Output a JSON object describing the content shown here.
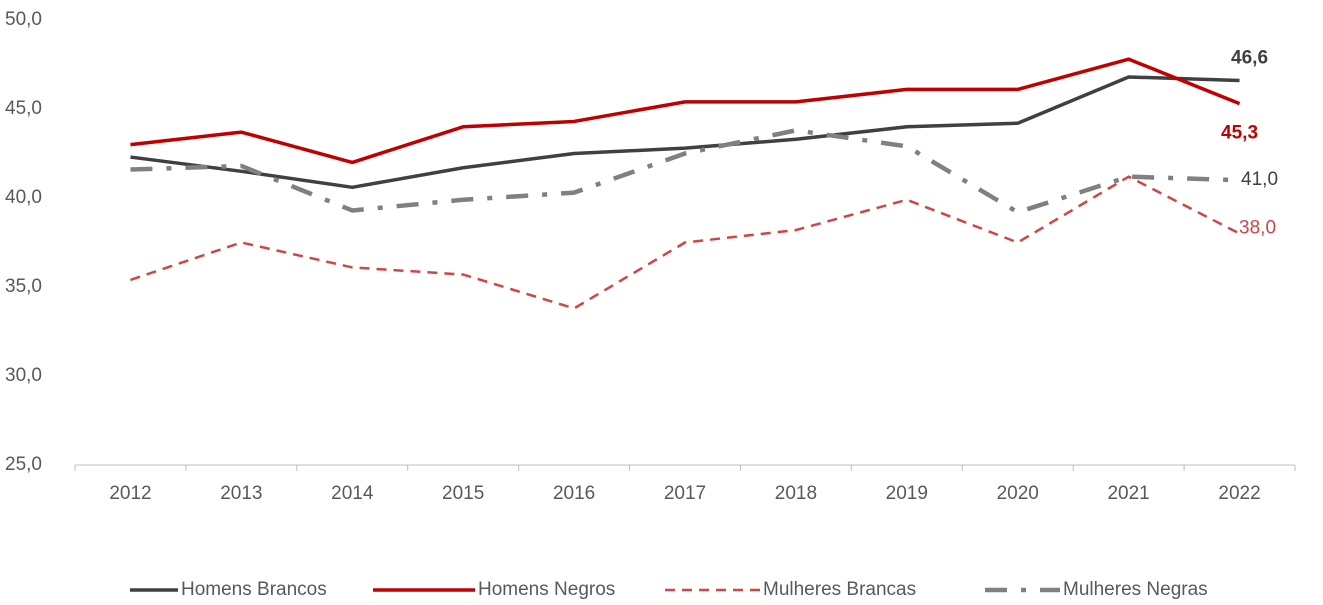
{
  "chart_data": {
    "type": "line",
    "categories": [
      "2012",
      "2013",
      "2014",
      "2015",
      "2016",
      "2017",
      "2018",
      "2019",
      "2020",
      "2021",
      "2022"
    ],
    "ylim": [
      25,
      50
    ],
    "yticks": [
      {
        "value": 25,
        "label": "25,0"
      },
      {
        "value": 30,
        "label": "30,0"
      },
      {
        "value": 35,
        "label": "35,0"
      },
      {
        "value": 40,
        "label": "40,0"
      },
      {
        "value": 45,
        "label": "45,0"
      },
      {
        "value": 50,
        "label": "50,0"
      }
    ],
    "grid": false,
    "legend": "bottom",
    "series": [
      {
        "name": "Homens Brancos",
        "color": "#404040",
        "style": "solid",
        "values": [
          42.3,
          41.5,
          40.6,
          41.7,
          42.5,
          42.8,
          43.3,
          44.0,
          44.2,
          46.8,
          46.6
        ],
        "value_labels": [
          null,
          null,
          null,
          null,
          null,
          null,
          null,
          null,
          null,
          null,
          "46,6"
        ]
      },
      {
        "name": "Homens Negros",
        "color": "#c00000",
        "style": "solid",
        "values": [
          43.0,
          43.7,
          42.0,
          44.0,
          44.3,
          45.4,
          45.4,
          46.1,
          46.1,
          47.8,
          45.3
        ],
        "value_labels": [
          null,
          null,
          null,
          null,
          null,
          null,
          null,
          null,
          null,
          null,
          "45,3"
        ]
      },
      {
        "name": "Mulheres Brancas",
        "color": "#d04545",
        "style": "dashed",
        "values": [
          35.4,
          37.5,
          36.1,
          35.7,
          33.8,
          37.5,
          38.2,
          39.9,
          37.5,
          41.2,
          38.0
        ],
        "value_labels": [
          null,
          null,
          null,
          null,
          null,
          null,
          null,
          null,
          null,
          null,
          "38,0"
        ]
      },
      {
        "name": "Mulheres Negras",
        "color": "#808080",
        "style": "dashdot",
        "values": [
          41.6,
          41.8,
          39.3,
          39.9,
          40.3,
          42.5,
          43.8,
          42.9,
          39.2,
          41.2,
          41.0
        ],
        "value_labels": [
          null,
          null,
          null,
          null,
          null,
          null,
          null,
          null,
          null,
          null,
          "41,0"
        ]
      }
    ]
  }
}
